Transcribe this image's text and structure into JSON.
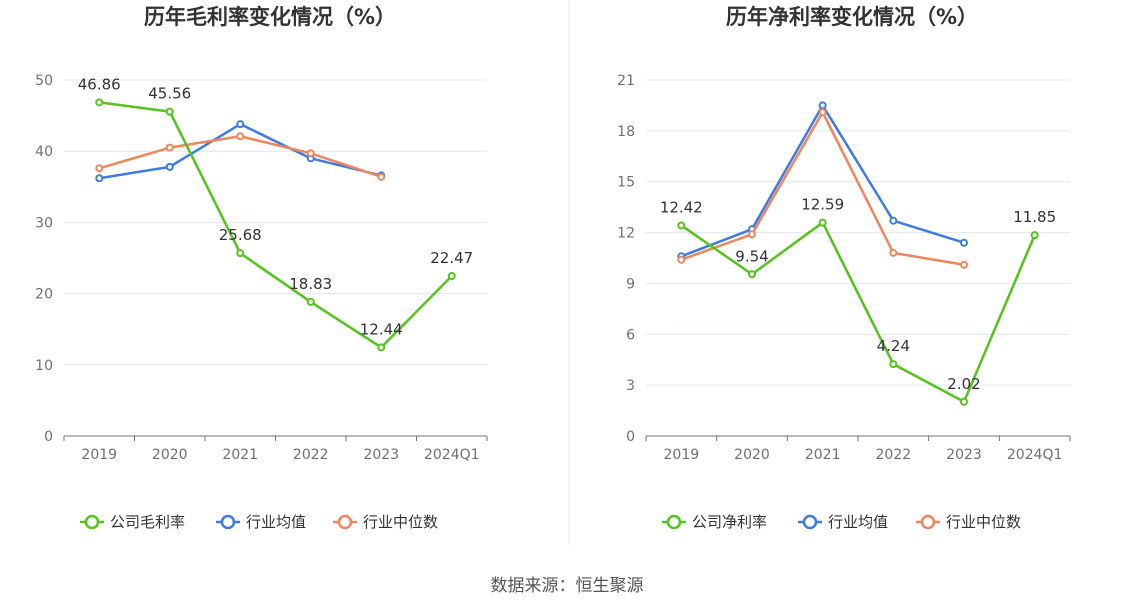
{
  "chart_data": [
    {
      "type": "line",
      "title": "历年毛利率变化情况（%）",
      "categories": [
        "2019",
        "2020",
        "2021",
        "2022",
        "2023",
        "2024Q1"
      ],
      "ylim": [
        0,
        50
      ],
      "yticks": [
        0,
        10,
        20,
        30,
        40,
        50
      ],
      "grid": true,
      "legend_position": "bottom",
      "series": [
        {
          "name": "公司毛利率",
          "color": "#52c41a",
          "labeled": true,
          "values": [
            46.86,
            45.56,
            25.68,
            18.83,
            12.44,
            22.47
          ]
        },
        {
          "name": "行业均值",
          "color": "#3d7be0",
          "labeled": false,
          "values": [
            36.2,
            37.8,
            43.8,
            39.0,
            36.6,
            null
          ]
        },
        {
          "name": "行业中位数",
          "color": "#f0855b",
          "labeled": false,
          "values": [
            37.6,
            40.5,
            42.1,
            39.7,
            36.4,
            null
          ]
        }
      ]
    },
    {
      "type": "line",
      "title": "历年净利率变化情况（%）",
      "categories": [
        "2019",
        "2020",
        "2021",
        "2022",
        "2023",
        "2024Q1"
      ],
      "ylim": [
        0,
        21
      ],
      "yticks": [
        0,
        3,
        6,
        9,
        12,
        15,
        18,
        21
      ],
      "grid": true,
      "legend_position": "bottom",
      "series": [
        {
          "name": "公司净利率",
          "color": "#52c41a",
          "labeled": true,
          "values": [
            12.42,
            9.54,
            12.59,
            4.24,
            2.02,
            11.85
          ]
        },
        {
          "name": "行业均值",
          "color": "#3d7be0",
          "labeled": false,
          "values": [
            10.6,
            12.2,
            19.5,
            12.7,
            11.4,
            null
          ]
        },
        {
          "name": "行业中位数",
          "color": "#f0855b",
          "labeled": false,
          "values": [
            10.4,
            11.9,
            19.1,
            10.8,
            10.1,
            null
          ]
        }
      ]
    }
  ],
  "source": "数据来源：恒生聚源"
}
